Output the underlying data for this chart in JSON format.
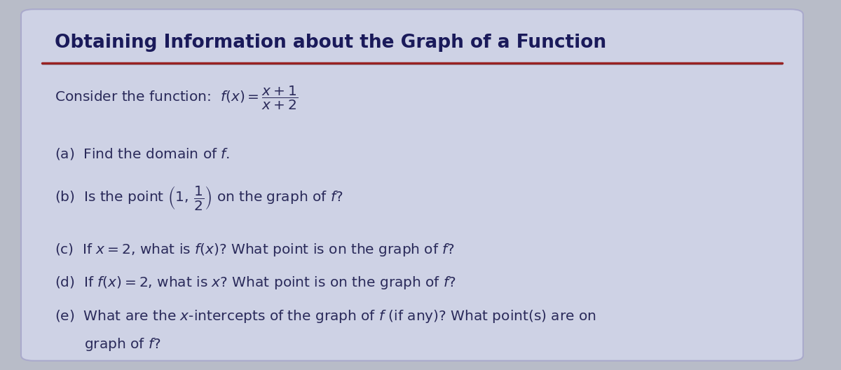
{
  "title": "Obtaining Information about the Graph of a Function",
  "bg_outer": "#c8ccd8",
  "bg_card": "#cdd0e0",
  "title_color": "#1a1a5a",
  "text_color": "#2a2a5a",
  "accent_line_color": "#8b2020",
  "line1": "Consider the function:  $f(x) = \\dfrac{x+1}{x+2}$",
  "line2": "(a)  Find the domain of $f$.",
  "line3": "(b)  Is the point $\\left(1,\\,\\dfrac{1}{2}\\right)$ on the graph of $f$?",
  "line4": "(c)  If $x = 2$, what is $f(x)$? What point is on the graph of $f$?",
  "line5": "(d)  If $f(x) = 2$, what is $x$? What point is on the graph of $f$?",
  "line6a": "(e)  What are the $x$-intercepts of the graph of $f$ (if any)? What point(s) are on",
  "line6b": "      graph of $f$?",
  "title_fontsize": 19,
  "body_fontsize": 14.5,
  "figsize": [
    12.0,
    5.28
  ],
  "dpi": 100
}
